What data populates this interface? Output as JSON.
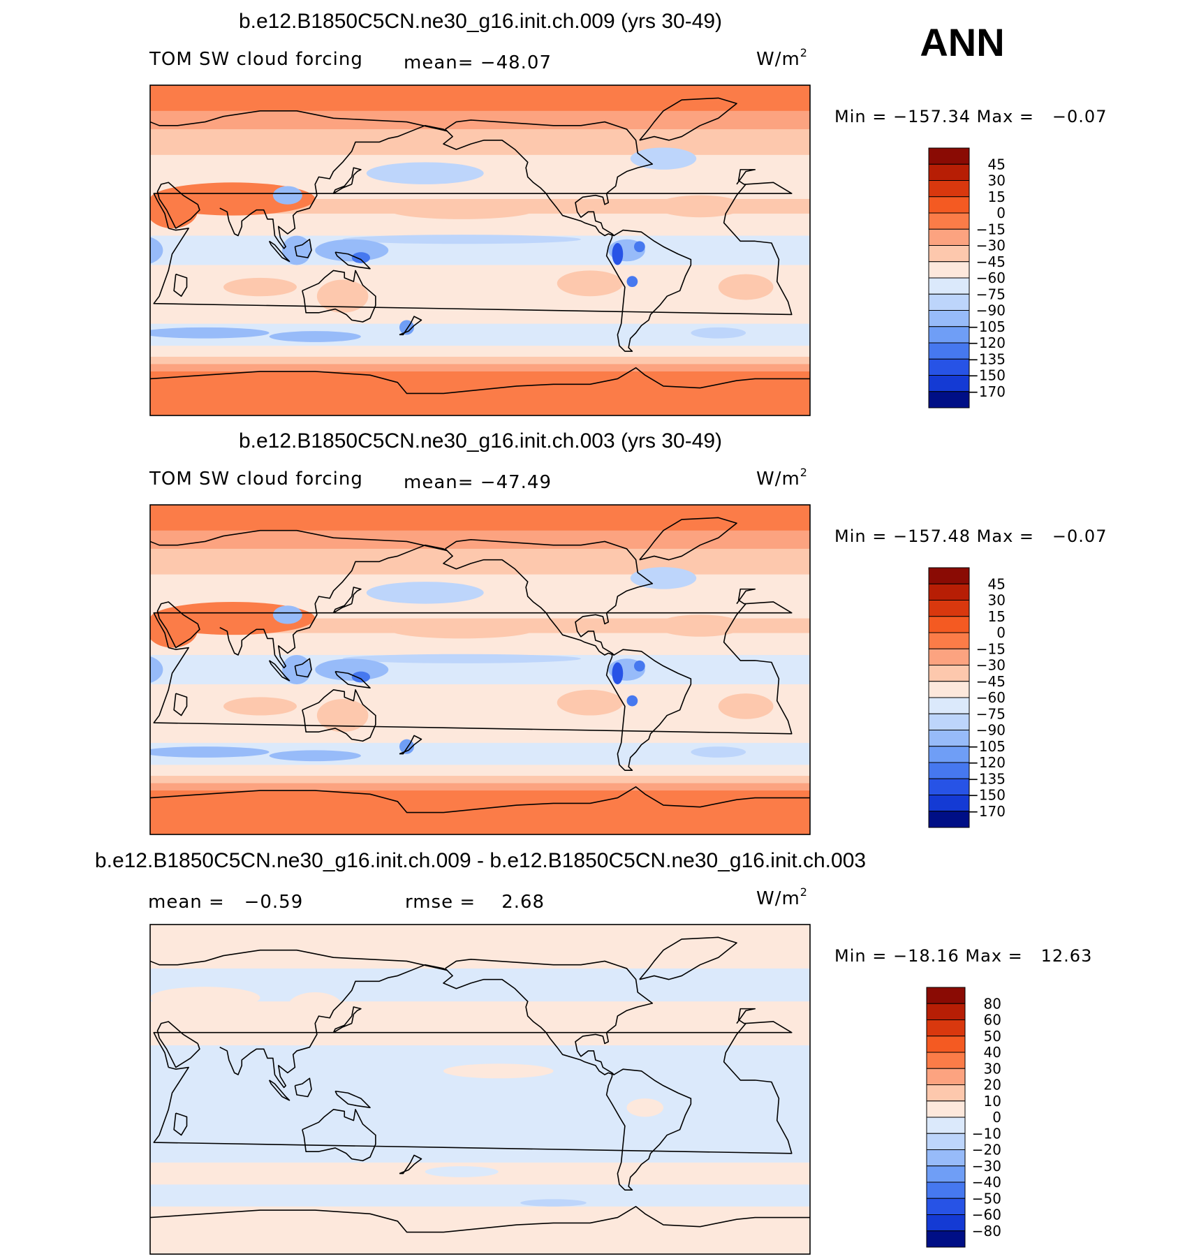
{
  "season": "ANN",
  "colors": {
    "pos": [
      "#fde8dc",
      "#fdc8ad",
      "#fca380",
      "#fb7c48",
      "#f45a22",
      "#d9380e",
      "#b71e05",
      "#8a0b04"
    ],
    "neg": [
      "#dbe9fb",
      "#bdd5fb",
      "#97bbf9",
      "#6f9ef6",
      "#4678ef",
      "#2753e6",
      "#143ad4",
      "#0720b8",
      "#000f86"
    ],
    "land": "#000000"
  },
  "icons": [
    "world-map"
  ],
  "chart_data": [
    {
      "type": "heatmap",
      "title": "b.e12.B1850C5CN.ne30_g16.init.ch.009 (yrs 30-49)",
      "variable": "TOM SW cloud forcing",
      "mean_text": "mean= −48.07",
      "units_text": "W/m",
      "units_sup": "2",
      "minmax_text": "Min = −157.34 Max =   −0.07",
      "mean": -48.07,
      "min": -157.34,
      "max": -0.07,
      "x_range": [
        30,
        390
      ],
      "y_range": [
        -90,
        90
      ],
      "levels": [
        "45",
        "30",
        "15",
        "0",
        "−15",
        "−30",
        "−45",
        "−60",
        "−75",
        "−90",
        "−105",
        "−120",
        "−135",
        "−150",
        "−170"
      ],
      "colorbar_colors": [
        "#8a0b04",
        "#b71e05",
        "#d9380e",
        "#f45a22",
        "#fb7c48",
        "#fca380",
        "#fdc8ad",
        "#fde8dc",
        "#dbe9fb",
        "#bdd5fb",
        "#97bbf9",
        "#6f9ef6",
        "#4678ef",
        "#2753e6",
        "#143ad4",
        "#000f86"
      ],
      "field": "cloud"
    },
    {
      "type": "heatmap",
      "title": "b.e12.B1850C5CN.ne30_g16.init.ch.003 (yrs 30-49)",
      "variable": "TOM SW cloud forcing",
      "mean_text": "mean= −47.49",
      "units_text": "W/m",
      "units_sup": "2",
      "minmax_text": "Min = −157.48 Max =   −0.07",
      "mean": -47.49,
      "min": -157.48,
      "max": -0.07,
      "x_range": [
        30,
        390
      ],
      "y_range": [
        -90,
        90
      ],
      "levels": [
        "45",
        "30",
        "15",
        "0",
        "−15",
        "−30",
        "−45",
        "−60",
        "−75",
        "−90",
        "−105",
        "−120",
        "−135",
        "−150",
        "−170"
      ],
      "colorbar_colors": [
        "#8a0b04",
        "#b71e05",
        "#d9380e",
        "#f45a22",
        "#fb7c48",
        "#fca380",
        "#fdc8ad",
        "#fde8dc",
        "#dbe9fb",
        "#bdd5fb",
        "#97bbf9",
        "#6f9ef6",
        "#4678ef",
        "#2753e6",
        "#143ad4",
        "#000f86"
      ],
      "field": "cloud"
    },
    {
      "type": "heatmap",
      "title": "b.e12.B1850C5CN.ne30_g16.init.ch.009 - b.e12.B1850C5CN.ne30_g16.init.ch.003",
      "mean_text": "mean =   −0.59",
      "rmse_text": "rmse =    2.68",
      "units_text": "W/m",
      "units_sup": "2",
      "minmax_text": "Min = −18.16 Max =   12.63",
      "mean": -0.59,
      "rmse": 2.68,
      "min": -18.16,
      "max": 12.63,
      "x_range": [
        30,
        390
      ],
      "y_range": [
        -90,
        90
      ],
      "levels": [
        "80",
        "60",
        "50",
        "40",
        "30",
        "20",
        "10",
        "0",
        "−10",
        "−20",
        "−30",
        "−40",
        "−50",
        "−60",
        "−80"
      ],
      "colorbar_colors": [
        "#8a0b04",
        "#b71e05",
        "#d9380e",
        "#f45a22",
        "#fb7c48",
        "#fca380",
        "#fdc8ad",
        "#fde8dc",
        "#dbe9fb",
        "#bdd5fb",
        "#97bbf9",
        "#6f9ef6",
        "#4678ef",
        "#2753e6",
        "#143ad4",
        "#000f86"
      ],
      "field": "diff"
    }
  ]
}
